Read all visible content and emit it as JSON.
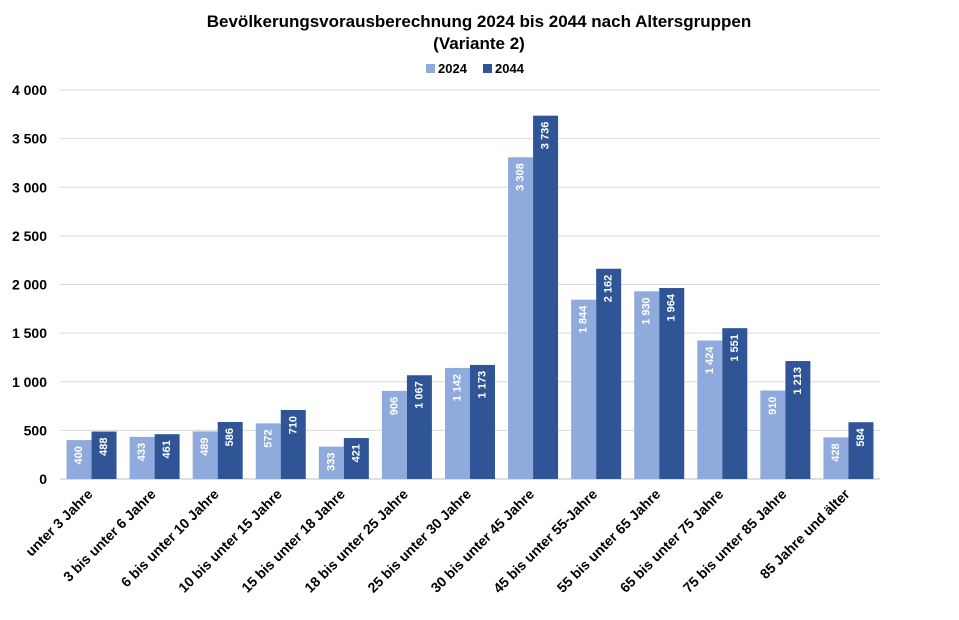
{
  "chart_data": {
    "type": "bar",
    "title": "Bevölkerungsvorausberechnung 2024 bis 2044 nach Altersgruppen",
    "subtitle": "(Variante 2)",
    "xlabel": "",
    "ylabel": "",
    "ylim": [
      0,
      4000
    ],
    "yticks": [
      0,
      500,
      1000,
      1500,
      2000,
      2500,
      3000,
      3500,
      4000
    ],
    "ytick_labels": [
      "0",
      "500",
      "1 000",
      "1 500",
      "2 000",
      "2 500",
      "3 000",
      "3 500",
      "4 000"
    ],
    "grid": true,
    "legend_position": "top-center",
    "categories": [
      "unter 3 Jahre",
      "3 bis unter 6 Jahre",
      "6 bis unter 10 Jahre",
      "10 bis unter 15 Jahre",
      "15 bis unter 18 Jahre",
      "18 bis unter 25 Jahre",
      "25 bis unter 30 Jahre",
      "30 bis unter 45 Jahre",
      "45 bis unter 55-Jahre",
      "55 bis unter 65 Jahre",
      "65 bis unter 75 Jahre",
      "75 bis unter 85 Jahre",
      "85 Jahre und älter"
    ],
    "series": [
      {
        "name": "2024",
        "color": "#8FAADC",
        "values": [
          400,
          433,
          489,
          572,
          333,
          906,
          1142,
          3308,
          1844,
          1930,
          1424,
          910,
          428
        ],
        "labels": [
          "400",
          "433",
          "489",
          "572",
          "333",
          "906",
          "1 142",
          "3 308",
          "1 844",
          "1 930",
          "1 424",
          "910",
          "428"
        ]
      },
      {
        "name": "2044",
        "color": "#2F5597",
        "values": [
          488,
          461,
          586,
          710,
          421,
          1067,
          1173,
          3736,
          2162,
          1964,
          1551,
          1213,
          584
        ],
        "labels": [
          "488",
          "461",
          "586",
          "710",
          "421",
          "1 067",
          "1 173",
          "3 736",
          "2 162",
          "1 964",
          "1 551",
          "1 213",
          "584"
        ]
      }
    ]
  }
}
